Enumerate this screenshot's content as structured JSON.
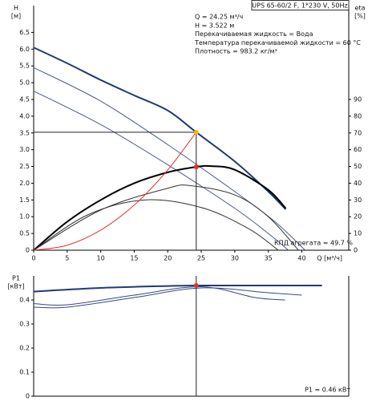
{
  "chart_data": [
    {
      "type": "line",
      "model": "UPS 65-60/2 F, 1*230 V, 50Hz",
      "info": [
        "Q = 24.25 м³/ч",
        "H = 3.522 м",
        "Перекачиваемая жидкость = Вода",
        "Температура перекачиваемой жидкости = 60 °C",
        "Плотность = 983.2 кг/м³"
      ],
      "efficiency_label": "КПД агрегата = 49.7 %",
      "xlabel": "Q [м³/ч]",
      "ylabel": "H",
      "yunit": "[м]",
      "y2label": "eta",
      "y2unit": "[%]",
      "xlim": [
        0,
        47
      ],
      "ylim": [
        0,
        7.3
      ],
      "y2lim": [
        0,
        146
      ],
      "xticks": [
        0,
        5,
        10,
        15,
        20,
        25,
        30,
        35,
        40
      ],
      "yticks": [
        0,
        0.5,
        {
          "value": 1,
          "label": "1.0"
        },
        1.5,
        {
          "value": 2,
          "label": "2.0"
        },
        2.5,
        {
          "value": 3,
          "label": "3.0"
        },
        3.5,
        {
          "value": 4,
          "label": "4.0"
        },
        4.5,
        {
          "value": 5,
          "label": "5.0"
        },
        5.5,
        {
          "value": 6,
          "label": "6.0"
        },
        6.5
      ],
      "y2ticks": [
        0,
        10,
        20,
        30,
        40,
        50,
        60,
        70,
        80,
        90
      ],
      "series": [
        {
          "color": "#1f3b73",
          "width": 2,
          "x": [
            0,
            5,
            10,
            15,
            20,
            24.25,
            30,
            35,
            37.6
          ],
          "values": [
            6.05,
            5.58,
            5.08,
            4.62,
            4.17,
            3.522,
            2.65,
            1.75,
            1.22
          ]
        },
        {
          "color": "#4a5a8c",
          "width": 1,
          "x": [
            0,
            10,
            20,
            30,
            36,
            40.5
          ],
          "values": [
            5.45,
            4.45,
            3.15,
            1.75,
            0.85,
            0
          ]
        },
        {
          "color": "#4a5a8c",
          "width": 1,
          "x": [
            0,
            10,
            20,
            30,
            35,
            38
          ],
          "values": [
            4.75,
            3.75,
            2.55,
            1.25,
            0.5,
            0
          ]
        },
        {
          "color": "#000000",
          "width": 2,
          "axis": "y2",
          "x": [
            0,
            5,
            10,
            15,
            20,
            24.25,
            26.5,
            30,
            35,
            37.6
          ],
          "values": [
            0,
            17,
            30,
            40,
            46.5,
            49.7,
            50.2,
            48,
            36,
            25
          ]
        },
        {
          "color": "#333333",
          "width": 1,
          "axis": "y2",
          "x": [
            0,
            10,
            20,
            23.5,
            30,
            35,
            39.5
          ],
          "values": [
            0,
            24,
            37,
            38.5,
            33,
            20,
            0
          ]
        },
        {
          "color": "#333333",
          "width": 1,
          "axis": "y2",
          "x": [
            0,
            8,
            16.5,
            25,
            32,
            36.5
          ],
          "values": [
            0,
            21,
            30,
            25.5,
            13,
            0
          ]
        },
        {
          "color": "#e8302a",
          "width": 1,
          "x": [
            0,
            5,
            10,
            15,
            20,
            24.25
          ],
          "values": [
            0,
            0.15,
            0.599,
            1.348,
            2.396,
            3.522
          ]
        },
        {
          "color": "#222222",
          "width": 1,
          "x": [
            0,
            24.25
          ],
          "values": [
            3.522,
            3.522
          ]
        },
        {
          "color": "#222222",
          "width": 1,
          "x": [
            24.25,
            24.25
          ],
          "values": [
            3.522,
            0
          ]
        }
      ],
      "points": [
        {
          "x": 24.25,
          "y": 3.522,
          "color": "#f5b800"
        },
        {
          "x": 24.25,
          "y": 49.7,
          "color": "#e8302a",
          "axis": "y2"
        }
      ]
    },
    {
      "type": "line",
      "power_label": "P1 = 0.46 кВт",
      "ylabel": "P1",
      "yunit": "[кВт]",
      "xlim": [
        0,
        47
      ],
      "ylim": [
        0,
        0.5
      ],
      "yticks": [
        0,
        0.1,
        0.2,
        0.3,
        0.4
      ],
      "series": [
        {
          "color": "#1f3b73",
          "width": 2,
          "x": [
            0,
            10,
            20,
            24.25,
            30,
            43
          ],
          "values": [
            0.435,
            0.45,
            0.458,
            0.46,
            0.46,
            0.46
          ]
        },
        {
          "color": "#3a4a7c",
          "width": 1,
          "x": [
            0,
            5,
            15,
            25,
            35,
            40
          ],
          "values": [
            0.37,
            0.37,
            0.41,
            0.45,
            0.43,
            0.42
          ]
        },
        {
          "color": "#3a4a7c",
          "width": 1,
          "x": [
            0,
            5,
            15,
            25,
            33,
            37.5
          ],
          "values": [
            0.385,
            0.38,
            0.42,
            0.455,
            0.41,
            0.4
          ]
        },
        {
          "color": "#222222",
          "width": 1,
          "x": [
            24.25,
            24.25
          ],
          "values": [
            0.5,
            0
          ]
        }
      ],
      "points": [
        {
          "x": 24.25,
          "y": 0.46,
          "color": "#e8302a"
        }
      ]
    }
  ]
}
